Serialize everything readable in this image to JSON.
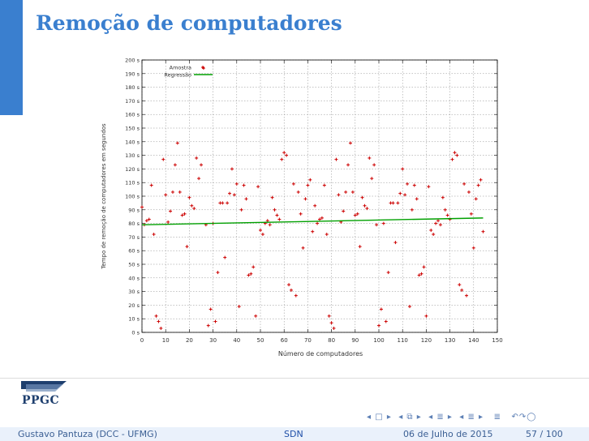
{
  "slide": {
    "title": "Remoção de computadores",
    "footer_author": "Gustavo Pantuza (DCC - UFMG)",
    "footer_topic": "SDN",
    "footer_date": "06 de Julho de 2015",
    "footer_page": "57 / 100",
    "logo_text": "PPGC",
    "accent_color": "#3a7fcf"
  },
  "chart_data": {
    "type": "scatter",
    "title": "",
    "xlabel": "Número de computadores",
    "ylabel": "Tempo de remoção de computadores em segundos",
    "xlim": [
      0,
      150
    ],
    "ylim": [
      0,
      200
    ],
    "x_ticks": [
      0,
      10,
      20,
      30,
      40,
      50,
      60,
      70,
      80,
      90,
      100,
      110,
      120,
      130,
      140,
      150
    ],
    "y_ticks": [
      0,
      10,
      20,
      30,
      40,
      50,
      60,
      70,
      80,
      90,
      100,
      110,
      120,
      130,
      140,
      150,
      160,
      170,
      180,
      190,
      200
    ],
    "x_tick_labels": [
      "0",
      "10",
      "20",
      "30",
      "40",
      "50",
      "60",
      "70",
      "80",
      "90",
      "100",
      "110",
      "120",
      "130",
      "140",
      "150"
    ],
    "y_tick_labels": [
      "0 s",
      "10 s",
      "20 s",
      "30 s",
      "40 s",
      "50 s",
      "60 s",
      "70 s",
      "80 s",
      "90 s",
      "100 s",
      "110 s",
      "120 s",
      "130 s",
      "140 s",
      "150 s",
      "160 s",
      "170 s",
      "180 s",
      "190 s",
      "200 s"
    ],
    "grid": true,
    "legend_position": "top-left",
    "series": [
      {
        "name": "Amostra",
        "color": "#cc0000",
        "marker": "plus",
        "points": [
          [
            0,
            92
          ],
          [
            1,
            79
          ],
          [
            2,
            82
          ],
          [
            3,
            83
          ],
          [
            4,
            108
          ],
          [
            5,
            72
          ],
          [
            6,
            12
          ],
          [
            7,
            8
          ],
          [
            8,
            3
          ],
          [
            9,
            127
          ],
          [
            10,
            101
          ],
          [
            11,
            81
          ],
          [
            12,
            89
          ],
          [
            13,
            103
          ],
          [
            14,
            123
          ],
          [
            15,
            139
          ],
          [
            16,
            103
          ],
          [
            17,
            86
          ],
          [
            18,
            87
          ],
          [
            19,
            63
          ],
          [
            20,
            99
          ],
          [
            21,
            93
          ],
          [
            22,
            91
          ],
          [
            23,
            128
          ],
          [
            24,
            113
          ],
          [
            25,
            123
          ],
          [
            26,
            194
          ],
          [
            27,
            79
          ],
          [
            28,
            5
          ],
          [
            29,
            17
          ],
          [
            30,
            80
          ],
          [
            31,
            8
          ],
          [
            32,
            44
          ],
          [
            33,
            95
          ],
          [
            34,
            95
          ],
          [
            35,
            55
          ],
          [
            36,
            95
          ],
          [
            37,
            102
          ],
          [
            38,
            120
          ],
          [
            39,
            101
          ],
          [
            40,
            109
          ],
          [
            41,
            19
          ],
          [
            42,
            90
          ],
          [
            43,
            108
          ],
          [
            44,
            98
          ],
          [
            45,
            42
          ],
          [
            46,
            43
          ],
          [
            47,
            48
          ],
          [
            48,
            12
          ],
          [
            49,
            107
          ],
          [
            50,
            75
          ],
          [
            51,
            72
          ],
          [
            52,
            80
          ],
          [
            53,
            82
          ],
          [
            54,
            79
          ],
          [
            55,
            99
          ],
          [
            56,
            90
          ],
          [
            57,
            86
          ],
          [
            58,
            83
          ],
          [
            59,
            127
          ],
          [
            60,
            132
          ],
          [
            61,
            130
          ],
          [
            62,
            35
          ],
          [
            63,
            31
          ],
          [
            64,
            109
          ],
          [
            65,
            27
          ],
          [
            66,
            103
          ],
          [
            67,
            87
          ],
          [
            68,
            62
          ],
          [
            69,
            98
          ],
          [
            70,
            108
          ],
          [
            71,
            112
          ],
          [
            72,
            74
          ],
          [
            73,
            93
          ],
          [
            74,
            80
          ],
          [
            75,
            83
          ],
          [
            76,
            84
          ],
          [
            77,
            108
          ],
          [
            78,
            72
          ],
          [
            79,
            12
          ],
          [
            80,
            7
          ],
          [
            81,
            3
          ],
          [
            82,
            127
          ],
          [
            83,
            101
          ],
          [
            84,
            81
          ],
          [
            85,
            89
          ],
          [
            86,
            103
          ],
          [
            87,
            123
          ],
          [
            88,
            139
          ],
          [
            89,
            103
          ],
          [
            90,
            86
          ],
          [
            91,
            87
          ],
          [
            92,
            63
          ],
          [
            93,
            99
          ],
          [
            94,
            93
          ],
          [
            95,
            91
          ],
          [
            96,
            128
          ],
          [
            97,
            113
          ],
          [
            98,
            123
          ],
          [
            99,
            79
          ],
          [
            100,
            5
          ],
          [
            101,
            17
          ],
          [
            102,
            80
          ],
          [
            103,
            8
          ],
          [
            104,
            44
          ],
          [
            105,
            95
          ],
          [
            106,
            95
          ],
          [
            107,
            66
          ],
          [
            108,
            95
          ],
          [
            109,
            102
          ],
          [
            110,
            120
          ],
          [
            111,
            101
          ],
          [
            112,
            109
          ],
          [
            113,
            19
          ],
          [
            114,
            90
          ],
          [
            115,
            108
          ],
          [
            116,
            98
          ],
          [
            117,
            42
          ],
          [
            118,
            43
          ],
          [
            119,
            48
          ],
          [
            120,
            12
          ],
          [
            121,
            107
          ],
          [
            122,
            75
          ],
          [
            123,
            72
          ],
          [
            124,
            80
          ],
          [
            125,
            82
          ],
          [
            126,
            79
          ],
          [
            127,
            99
          ],
          [
            128,
            90
          ],
          [
            129,
            86
          ],
          [
            130,
            83
          ],
          [
            131,
            127
          ],
          [
            132,
            132
          ],
          [
            133,
            130
          ],
          [
            134,
            35
          ],
          [
            135,
            31
          ],
          [
            136,
            109
          ],
          [
            137,
            27
          ],
          [
            138,
            103
          ],
          [
            139,
            87
          ],
          [
            140,
            62
          ],
          [
            141,
            98
          ],
          [
            142,
            108
          ],
          [
            143,
            112
          ],
          [
            144,
            74
          ]
        ]
      },
      {
        "name": "Regressão",
        "color": "#00a000",
        "marker": "line",
        "points": [
          [
            0,
            79
          ],
          [
            144,
            84
          ]
        ]
      }
    ]
  }
}
